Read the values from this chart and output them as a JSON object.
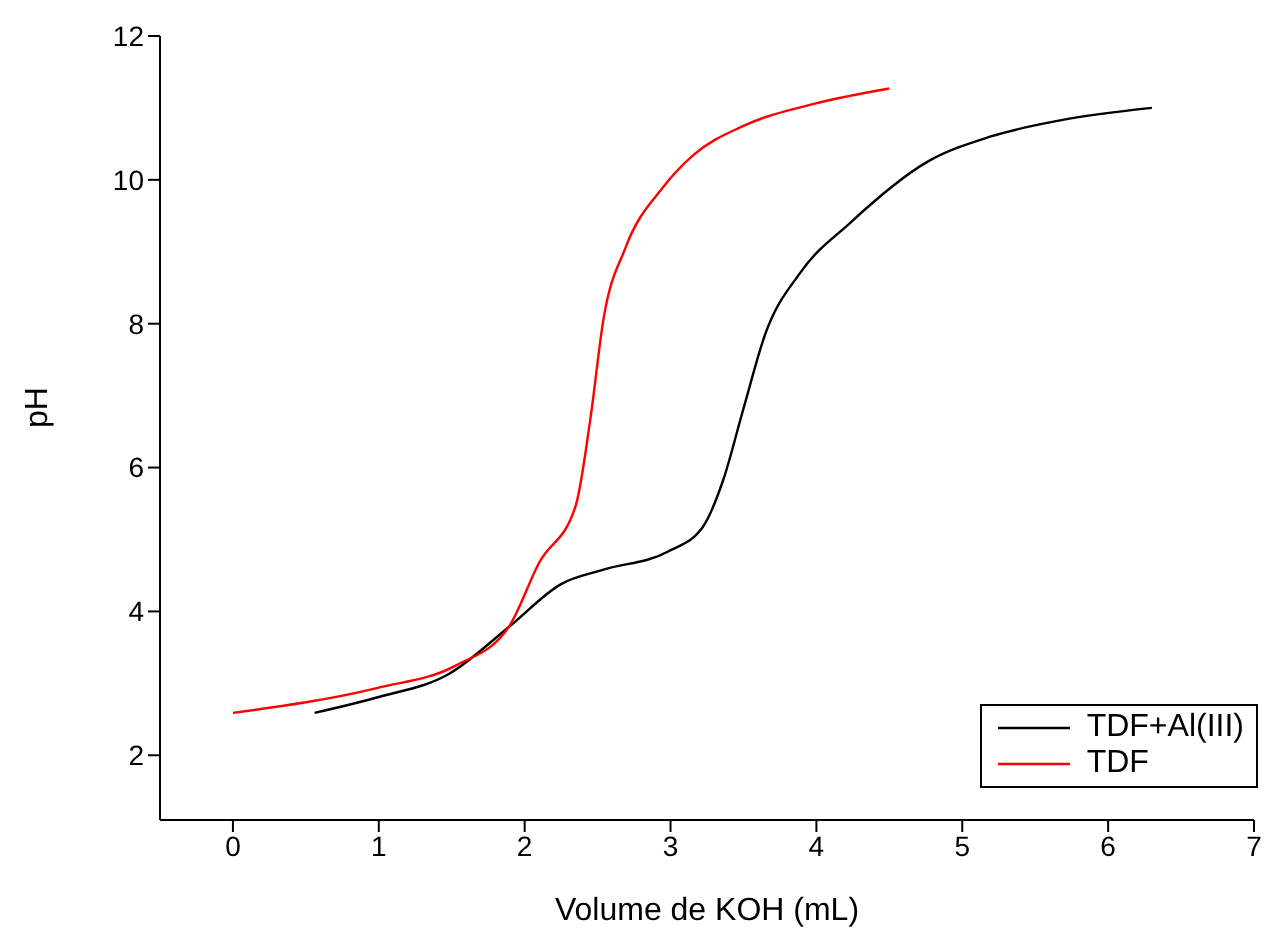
{
  "chart_data": {
    "type": "line",
    "xlabel": "Volume de KOH (mL)",
    "ylabel": "pH",
    "xlim": [
      -0.5,
      7
    ],
    "xticks": [
      0,
      1,
      2,
      3,
      4,
      5,
      6,
      7
    ],
    "ylim": [
      1.1,
      12
    ],
    "yticks": [
      2,
      4,
      6,
      8,
      10,
      12
    ],
    "grid": false,
    "legend": "bottom right",
    "marker": "none",
    "line_style": "solid",
    "series": [
      {
        "name": "TDF+Al(III)",
        "color": "#000000",
        "x": [
          0.56,
          1.0,
          1.48,
          1.89,
          2.25,
          2.54,
          2.98,
          3.22,
          3.36,
          3.5,
          3.65,
          3.89,
          4.23,
          4.76,
          5.19,
          5.68,
          6.3
        ],
        "values": [
          2.59,
          2.81,
          3.13,
          3.78,
          4.38,
          4.58,
          4.83,
          5.17,
          5.82,
          6.82,
          7.86,
          8.71,
          9.4,
          10.25,
          10.6,
          10.83,
          11.0
        ]
      },
      {
        "name": "TDF",
        "color": "#ff0000",
        "x": [
          0,
          1.0,
          1.53,
          1.89,
          2.1,
          2.35,
          2.45,
          2.54,
          2.69,
          2.95,
          3.16,
          3.5,
          3.99,
          4.5
        ],
        "values": [
          2.59,
          2.94,
          3.25,
          3.78,
          4.68,
          5.47,
          6.67,
          8.06,
          9.05,
          9.9,
          10.35,
          10.75,
          11.06,
          11.27
        ]
      }
    ]
  }
}
